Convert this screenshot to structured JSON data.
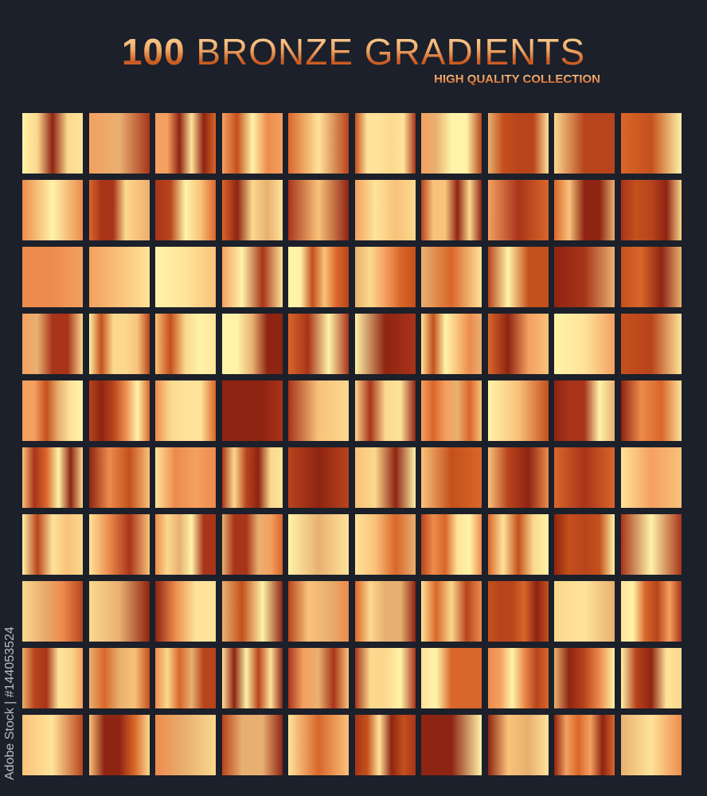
{
  "header": {
    "title_number": "100",
    "title_text": "BRONZE GRADIENTS",
    "subtitle": "HIGH QUALITY COLLECTION"
  },
  "credit": "Adobe Stock | #144053524",
  "grid": {
    "rows": 10,
    "columns": 10,
    "palette": [
      "#fff3a8",
      "#ffe39a",
      "#f9c27a",
      "#f4a060",
      "#ec8b4c",
      "#d9662a",
      "#c4501c",
      "#a8341a",
      "#8e2412",
      "#e8b070",
      "#fbd88e",
      "#b8441c"
    ]
  },
  "colors": {
    "background": "#1b202a"
  }
}
